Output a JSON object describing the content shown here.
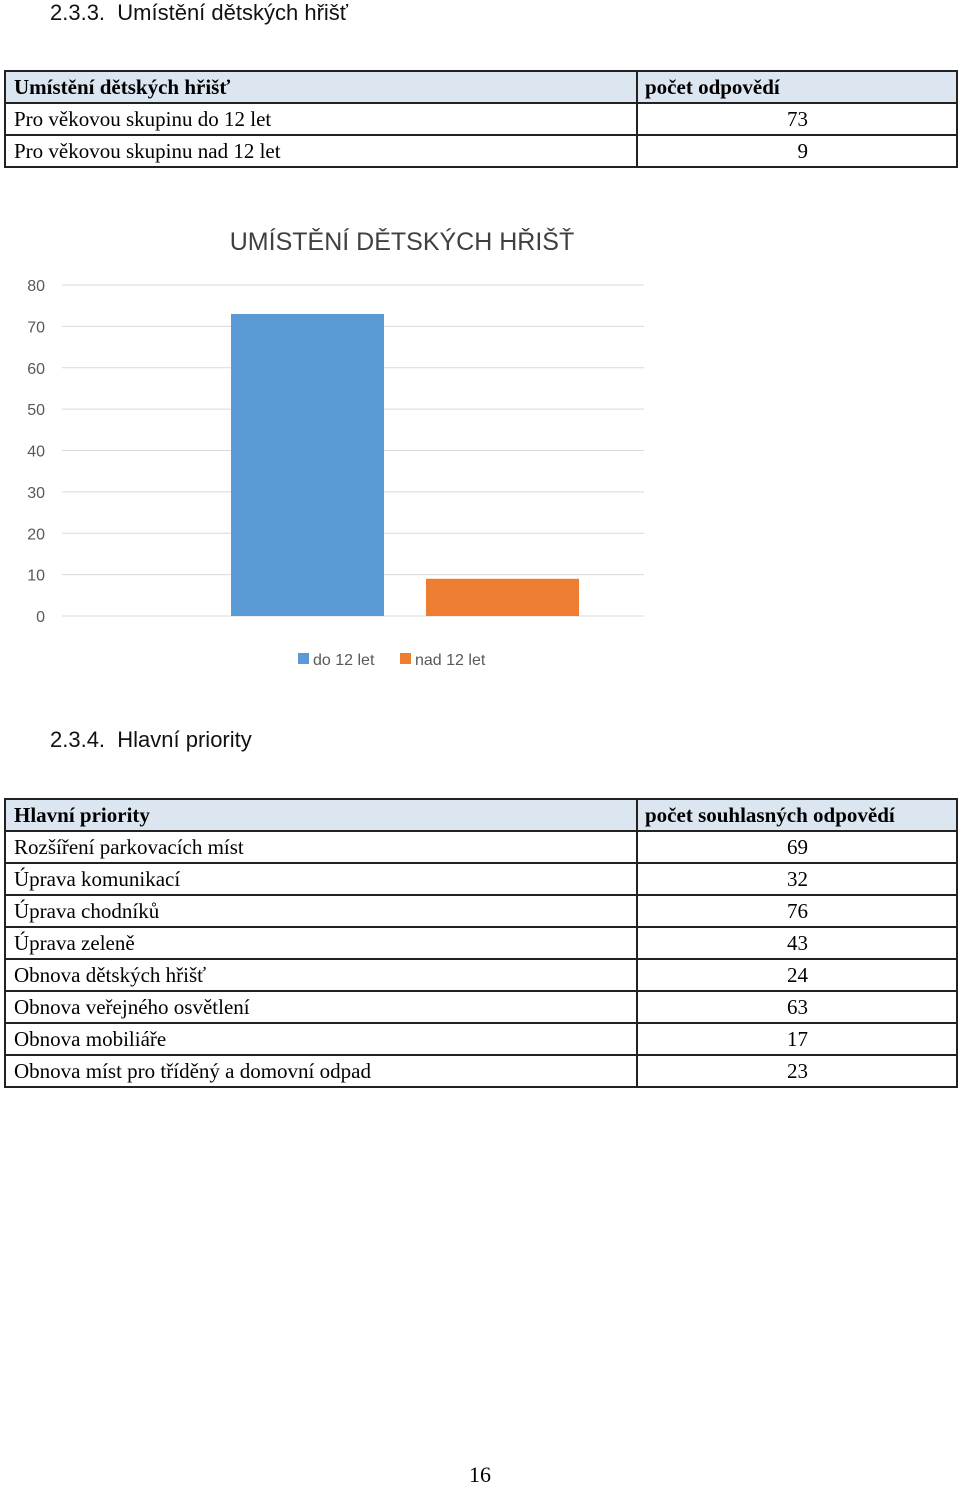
{
  "section1": {
    "heading": "2.3.3.  Umístění dětských hřišť"
  },
  "table1": {
    "header": [
      "Umístění dětských hřišť",
      "počet odpovědí"
    ],
    "rows": [
      [
        "Pro věkovou skupinu do 12 let",
        "73"
      ],
      [
        "Pro věkovou skupinu nad 12 let",
        "9"
      ]
    ]
  },
  "chart_data": {
    "type": "bar",
    "title": "UMÍSTĚNÍ DĚTSKÝCH HŘIŠŤ",
    "series": [
      {
        "name": "do 12 let",
        "values": [
          73
        ],
        "color": "#5b9bd5"
      },
      {
        "name": "nad 12 let",
        "values": [
          9
        ],
        "color": "#ed7d31"
      }
    ],
    "ylim": [
      0,
      80
    ],
    "yticks": [
      0,
      10,
      20,
      30,
      40,
      50,
      60,
      70,
      80
    ],
    "grid": true,
    "legend": "bottom",
    "xlabel": "",
    "ylabel": ""
  },
  "section2": {
    "heading": "2.3.4.  Hlavní priority"
  },
  "table2": {
    "header": [
      "Hlavní priority",
      "počet souhlasných odpovědí"
    ],
    "rows": [
      [
        "Rozšíření parkovacích míst",
        "69"
      ],
      [
        "Úprava komunikací",
        "32"
      ],
      [
        "Úprava chodníků",
        "76"
      ],
      [
        "Úprava zeleně",
        "43"
      ],
      [
        "Obnova dětských hřišť",
        "24"
      ],
      [
        "Obnova veřejného osvětlení",
        "63"
      ],
      [
        "Obnova mobiliáře",
        "17"
      ],
      [
        "Obnova míst pro tříděný a domovní odpad",
        "23"
      ]
    ]
  },
  "footer": {
    "page_number": "16"
  }
}
